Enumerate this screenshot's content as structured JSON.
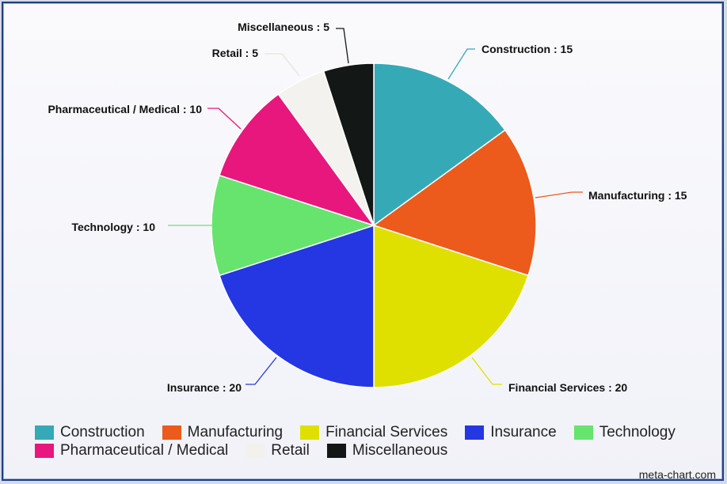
{
  "chart_data": {
    "type": "pie",
    "title": "",
    "data_label_separator": " : ",
    "series": [
      {
        "name": "Construction",
        "value": 15,
        "color": "#36a9b7"
      },
      {
        "name": "Manufacturing",
        "value": 15,
        "color": "#ec5a1c"
      },
      {
        "name": "Financial Services",
        "value": 20,
        "color": "#dfe000"
      },
      {
        "name": "Insurance",
        "value": 20,
        "color": "#2437e3"
      },
      {
        "name": "Technology",
        "value": 10,
        "color": "#66e46e"
      },
      {
        "name": "Pharmaceutical / Medical",
        "value": 10,
        "color": "#e7177d"
      },
      {
        "name": "Retail",
        "value": 5,
        "color": "#f3f2ee"
      },
      {
        "name": "Miscellaneous",
        "value": 5,
        "color": "#131716"
      }
    ],
    "legend_position": "bottom"
  },
  "credit": "meta-chart.com"
}
